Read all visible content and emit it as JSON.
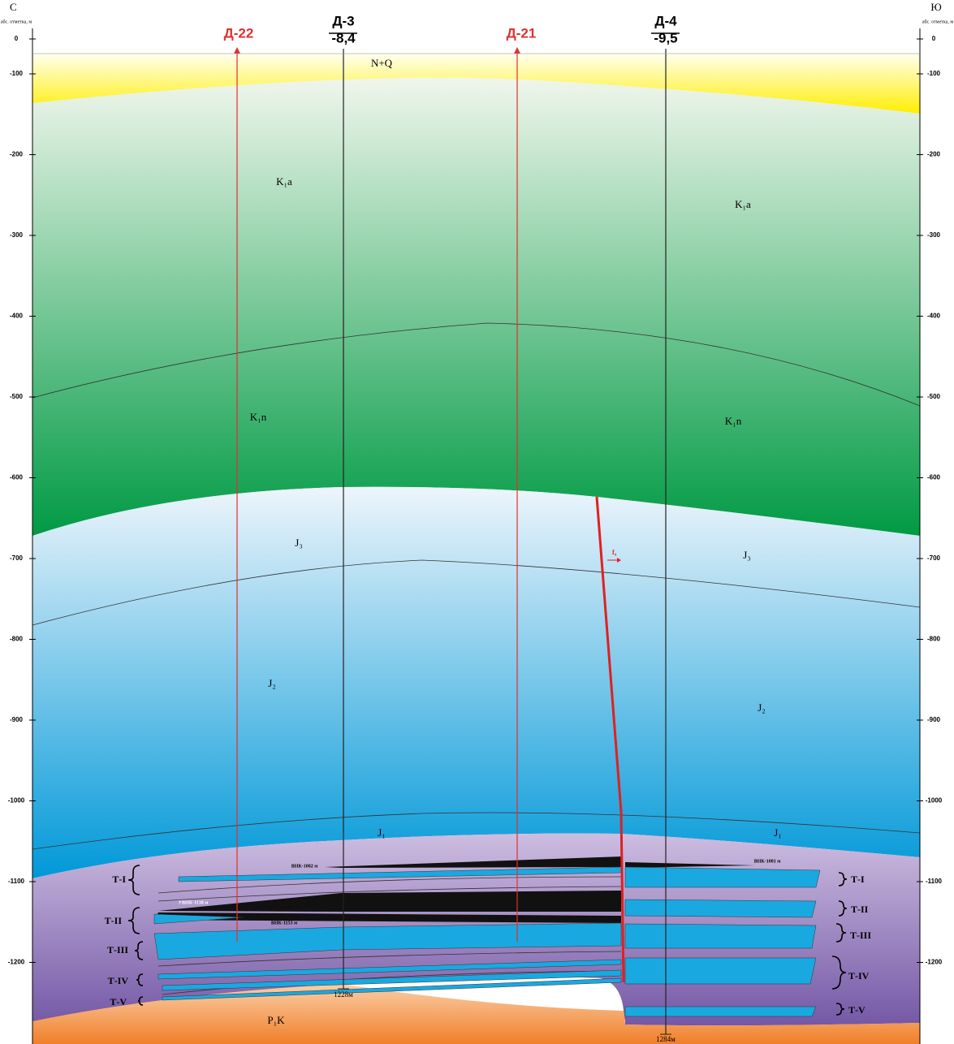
{
  "header": {
    "left_direction": "С",
    "right_direction": "Ю",
    "left_axis_label": "абс. отметка, м",
    "right_axis_label": "абс. отметка, м"
  },
  "depth_ticks": [
    0,
    -100,
    -200,
    -300,
    -400,
    -500,
    -600,
    -700,
    -800,
    -900,
    -1000,
    -1100,
    -1200
  ],
  "wells": [
    {
      "name": "Д-22"
    },
    {
      "name": "Д-3",
      "elevation": "-8,4"
    },
    {
      "name": "Д-21"
    },
    {
      "name": "Д-4",
      "elevation": "-9,5"
    }
  ],
  "well_depths": [
    "1228м",
    "1284м"
  ],
  "layers": [
    "N+Q",
    "K₁a",
    "K₁n",
    "J₃",
    "J₂",
    "J₁",
    "P₁K"
  ],
  "horizons": [
    "Т-I",
    "Т-II",
    "Т-III",
    "Т-IV",
    "Т-V"
  ],
  "contacts": [
    "ВНК-1082 м",
    "УВНК-1138 м",
    "ВНК-1153 м",
    "ВНК-1081 м"
  ],
  "fault": "f₄"
}
